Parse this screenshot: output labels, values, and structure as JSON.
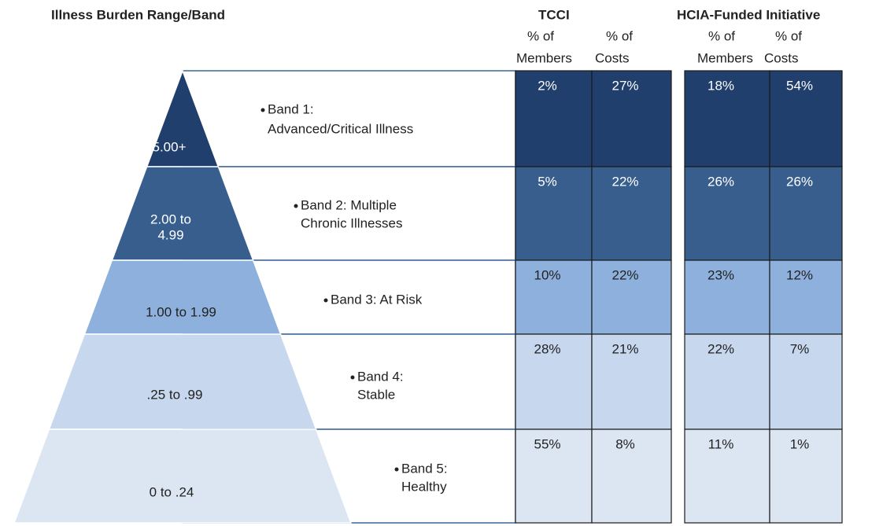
{
  "header": {
    "title": "Illness Burden Range/Band"
  },
  "groups": [
    {
      "title": "TCCI",
      "columns": [
        [
          "% of",
          "Members"
        ],
        [
          "% of",
          "Costs"
        ]
      ]
    },
    {
      "title": "HCIA-Funded Initiative",
      "columns": [
        [
          "% of",
          "Members"
        ],
        [
          "% of",
          "Costs"
        ]
      ]
    }
  ],
  "bands": [
    {
      "range": [
        "5.00+"
      ],
      "name": [
        "Band 1:",
        "Advanced/Critical Illness"
      ],
      "cells": [
        [
          "2%",
          "27%"
        ],
        [
          "18%",
          "54%"
        ]
      ]
    },
    {
      "range": [
        "2.00 to",
        "4.99"
      ],
      "name": [
        "Band 2:  Multiple",
        "Chronic Illnesses"
      ],
      "cells": [
        [
          "5%",
          "22%"
        ],
        [
          "26%",
          "26%"
        ]
      ]
    },
    {
      "range": [
        "1.00 to 1.99"
      ],
      "name": [
        "Band 3: At Risk"
      ],
      "cells": [
        [
          "10%",
          "22%"
        ],
        [
          "23%",
          "12%"
        ]
      ]
    },
    {
      "range": [
        ".25 to .99"
      ],
      "name": [
        "Band 4:",
        "Stable"
      ],
      "cells": [
        [
          "28%",
          "21%"
        ],
        [
          "22%",
          "7%"
        ]
      ]
    },
    {
      "range": [
        "0 to .24"
      ],
      "name": [
        "Band 5:",
        "Healthy"
      ],
      "cells": [
        [
          "55%",
          "8%"
        ],
        [
          "11%",
          "1%"
        ]
      ]
    }
  ]
}
